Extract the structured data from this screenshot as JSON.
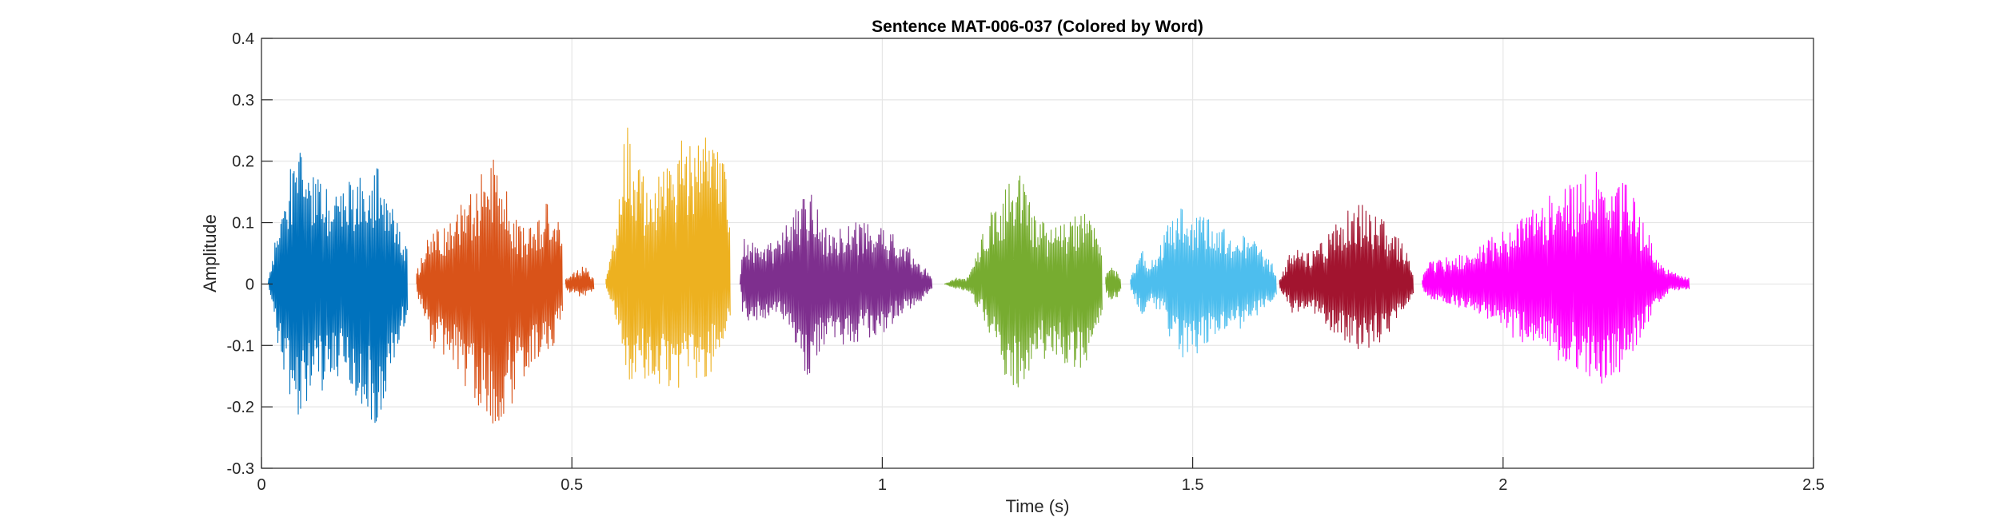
{
  "chart_data": {
    "type": "line",
    "title": "Sentence MAT-006-037 (Colored by Word)",
    "xlabel": "Time (s)",
    "ylabel": "Amplitude",
    "xlim": [
      0,
      2.5
    ],
    "ylim": [
      -0.3,
      0.4
    ],
    "x_ticks": [
      0,
      0.5,
      1,
      1.5,
      2,
      2.5
    ],
    "x_tick_labels": [
      "0",
      "0.5",
      "1",
      "1.5",
      "2",
      "2.5"
    ],
    "y_ticks": [
      -0.3,
      -0.2,
      -0.1,
      0,
      0.1,
      0.2,
      0.3,
      0.4
    ],
    "y_tick_labels": [
      "-0.3",
      "-0.2",
      "-0.1",
      "0",
      "0.1",
      "0.2",
      "0.3",
      "0.4"
    ],
    "grid": true,
    "series": [
      {
        "start": 0.01,
        "end": 0.235,
        "color": "#0072BD",
        "envelope": [
          [
            0.01,
            0.0,
            0.0
          ],
          [
            0.03,
            0.12,
            -0.13
          ],
          [
            0.05,
            0.2,
            -0.2
          ],
          [
            0.065,
            0.22,
            -0.24
          ],
          [
            0.085,
            0.18,
            -0.18
          ],
          [
            0.11,
            0.15,
            -0.17
          ],
          [
            0.13,
            0.16,
            -0.15
          ],
          [
            0.15,
            0.18,
            -0.18
          ],
          [
            0.17,
            0.19,
            -0.22
          ],
          [
            0.185,
            0.2,
            -0.23
          ],
          [
            0.2,
            0.16,
            -0.19
          ],
          [
            0.215,
            0.12,
            -0.12
          ],
          [
            0.235,
            0.06,
            -0.05
          ]
        ]
      },
      {
        "start": 0.25,
        "end": 0.485,
        "color": "#D95319",
        "envelope": [
          [
            0.25,
            0.02,
            -0.02
          ],
          [
            0.27,
            0.08,
            -0.1
          ],
          [
            0.3,
            0.1,
            -0.13
          ],
          [
            0.33,
            0.14,
            -0.17
          ],
          [
            0.355,
            0.18,
            -0.22
          ],
          [
            0.37,
            0.21,
            -0.26
          ],
          [
            0.385,
            0.19,
            -0.25
          ],
          [
            0.4,
            0.13,
            -0.2
          ],
          [
            0.42,
            0.09,
            -0.16
          ],
          [
            0.44,
            0.1,
            -0.13
          ],
          [
            0.455,
            0.13,
            -0.11
          ],
          [
            0.47,
            0.15,
            -0.1
          ],
          [
            0.485,
            0.08,
            -0.05
          ]
        ]
      },
      {
        "start": 0.49,
        "end": 0.535,
        "color": "#D95319",
        "envelope": [
          [
            0.49,
            0.01,
            -0.01
          ],
          [
            0.505,
            0.02,
            -0.02
          ],
          [
            0.52,
            0.03,
            -0.02
          ],
          [
            0.535,
            0.01,
            -0.01
          ]
        ]
      },
      {
        "start": 0.555,
        "end": 0.755,
        "color": "#EDB120",
        "envelope": [
          [
            0.555,
            0.01,
            -0.01
          ],
          [
            0.57,
            0.08,
            -0.06
          ],
          [
            0.585,
            0.26,
            -0.15
          ],
          [
            0.59,
            0.32,
            -0.2
          ],
          [
            0.6,
            0.22,
            -0.15
          ],
          [
            0.62,
            0.16,
            -0.16
          ],
          [
            0.65,
            0.19,
            -0.17
          ],
          [
            0.68,
            0.24,
            -0.17
          ],
          [
            0.7,
            0.25,
            -0.16
          ],
          [
            0.72,
            0.26,
            -0.15
          ],
          [
            0.74,
            0.22,
            -0.12
          ],
          [
            0.755,
            0.15,
            -0.06
          ]
        ]
      },
      {
        "start": 0.77,
        "end": 1.08,
        "color": "#7E2F8E",
        "envelope": [
          [
            0.77,
            0.0,
            0.0
          ],
          [
            0.775,
            0.08,
            -0.06
          ],
          [
            0.8,
            0.06,
            -0.06
          ],
          [
            0.83,
            0.07,
            -0.05
          ],
          [
            0.86,
            0.12,
            -0.1
          ],
          [
            0.875,
            0.16,
            -0.17
          ],
          [
            0.89,
            0.14,
            -0.13
          ],
          [
            0.91,
            0.09,
            -0.09
          ],
          [
            0.94,
            0.1,
            -0.1
          ],
          [
            0.97,
            0.1,
            -0.09
          ],
          [
            1.0,
            0.09,
            -0.08
          ],
          [
            1.03,
            0.08,
            -0.05
          ],
          [
            1.06,
            0.04,
            -0.03
          ],
          [
            1.08,
            0.01,
            -0.01
          ]
        ]
      },
      {
        "start": 1.1,
        "end": 1.355,
        "color": "#77AC30",
        "envelope": [
          [
            1.1,
            0.0,
            0.0
          ],
          [
            1.12,
            0.01,
            -0.01
          ],
          [
            1.135,
            0.01,
            -0.01
          ],
          [
            1.145,
            0.03,
            -0.03
          ],
          [
            1.16,
            0.08,
            -0.05
          ],
          [
            1.175,
            0.12,
            -0.09
          ],
          [
            1.19,
            0.14,
            -0.14
          ],
          [
            1.205,
            0.18,
            -0.17
          ],
          [
            1.215,
            0.19,
            -0.18
          ],
          [
            1.23,
            0.16,
            -0.15
          ],
          [
            1.25,
            0.11,
            -0.12
          ],
          [
            1.275,
            0.09,
            -0.13
          ],
          [
            1.3,
            0.1,
            -0.14
          ],
          [
            1.32,
            0.12,
            -0.14
          ],
          [
            1.34,
            0.11,
            -0.1
          ],
          [
            1.355,
            0.05,
            -0.04
          ]
        ]
      },
      {
        "start": 1.36,
        "end": 1.385,
        "color": "#77AC30",
        "envelope": [
          [
            1.36,
            0.02,
            -0.02
          ],
          [
            1.372,
            0.03,
            -0.03
          ],
          [
            1.385,
            0.01,
            -0.01
          ]
        ]
      },
      {
        "start": 1.4,
        "end": 1.635,
        "color": "#4DBEEE",
        "envelope": [
          [
            1.4,
            0.01,
            -0.01
          ],
          [
            1.42,
            0.06,
            -0.06
          ],
          [
            1.43,
            0.03,
            -0.03
          ],
          [
            1.45,
            0.07,
            -0.05
          ],
          [
            1.465,
            0.11,
            -0.1
          ],
          [
            1.48,
            0.13,
            -0.12
          ],
          [
            1.5,
            0.12,
            -0.12
          ],
          [
            1.52,
            0.11,
            -0.1
          ],
          [
            1.54,
            0.1,
            -0.09
          ],
          [
            1.57,
            0.09,
            -0.08
          ],
          [
            1.6,
            0.07,
            -0.06
          ],
          [
            1.62,
            0.05,
            -0.04
          ],
          [
            1.635,
            0.02,
            -0.02
          ]
        ]
      },
      {
        "start": 1.64,
        "end": 1.855,
        "color": "#A2142F",
        "envelope": [
          [
            1.64,
            0.01,
            -0.01
          ],
          [
            1.66,
            0.06,
            -0.05
          ],
          [
            1.68,
            0.05,
            -0.04
          ],
          [
            1.7,
            0.06,
            -0.05
          ],
          [
            1.725,
            0.09,
            -0.08
          ],
          [
            1.75,
            0.12,
            -0.1
          ],
          [
            1.77,
            0.13,
            -0.11
          ],
          [
            1.79,
            0.12,
            -0.1
          ],
          [
            1.81,
            0.1,
            -0.09
          ],
          [
            1.83,
            0.08,
            -0.06
          ],
          [
            1.855,
            0.03,
            -0.02
          ]
        ]
      },
      {
        "start": 1.87,
        "end": 2.3,
        "color": "#FF00FF",
        "envelope": [
          [
            1.87,
            0.01,
            -0.01
          ],
          [
            1.88,
            0.04,
            -0.03
          ],
          [
            1.9,
            0.04,
            -0.03
          ],
          [
            1.93,
            0.05,
            -0.04
          ],
          [
            1.96,
            0.06,
            -0.05
          ],
          [
            2.0,
            0.09,
            -0.08
          ],
          [
            2.04,
            0.12,
            -0.1
          ],
          [
            2.08,
            0.15,
            -0.12
          ],
          [
            2.12,
            0.17,
            -0.14
          ],
          [
            2.15,
            0.19,
            -0.16
          ],
          [
            2.17,
            0.18,
            -0.17
          ],
          [
            2.2,
            0.16,
            -0.13
          ],
          [
            2.22,
            0.12,
            -0.09
          ],
          [
            2.25,
            0.04,
            -0.03
          ],
          [
            2.27,
            0.02,
            -0.01
          ],
          [
            2.3,
            0.01,
            -0.01
          ]
        ]
      }
    ]
  }
}
